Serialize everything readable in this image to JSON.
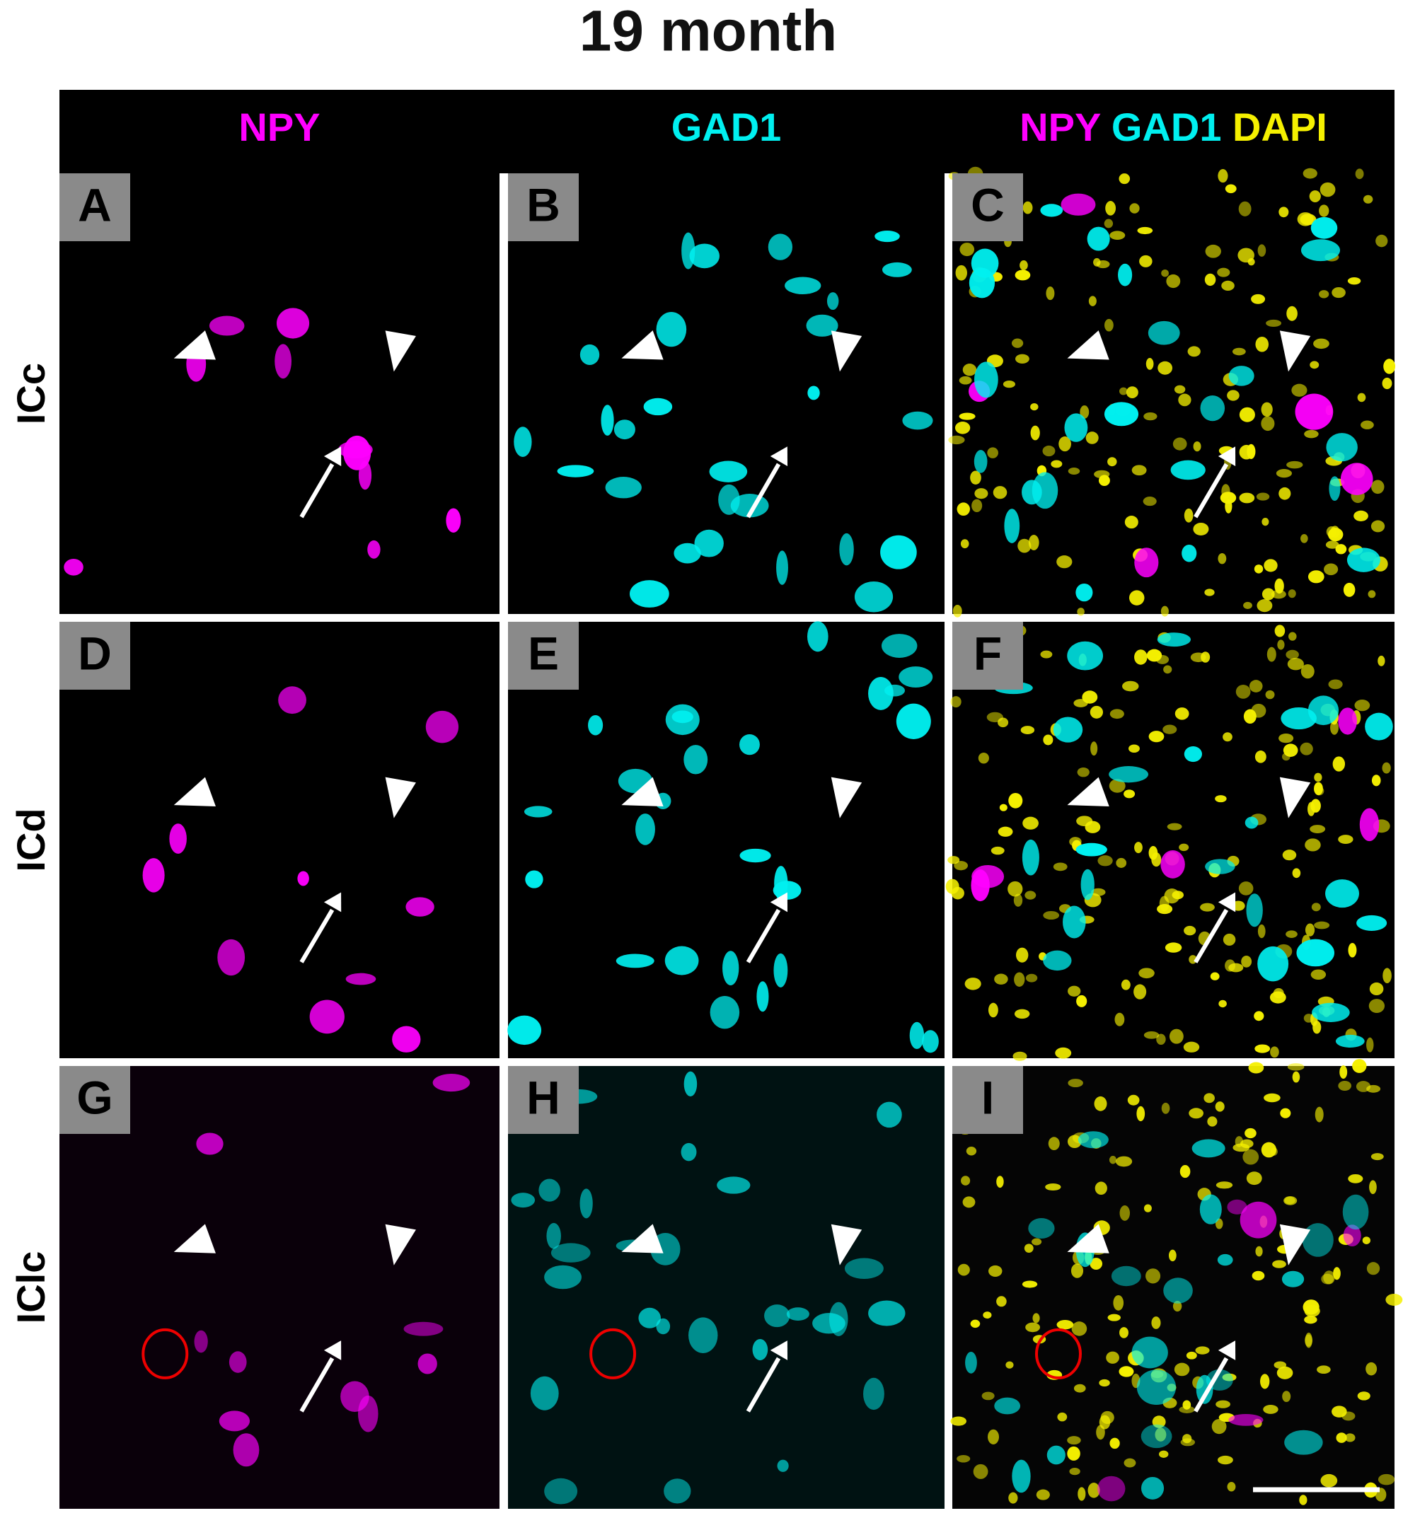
{
  "title": "19 month",
  "column_headers": [
    [
      "NPY"
    ],
    [
      "GAD1"
    ],
    [
      "NPY",
      "GAD1",
      "DAPI"
    ]
  ],
  "row_labels": [
    "ICc",
    "ICd",
    "IClc"
  ],
  "panel_labels": [
    [
      "A",
      "B",
      "C"
    ],
    [
      "D",
      "E",
      "F"
    ],
    [
      "G",
      "H",
      "I"
    ]
  ]
}
